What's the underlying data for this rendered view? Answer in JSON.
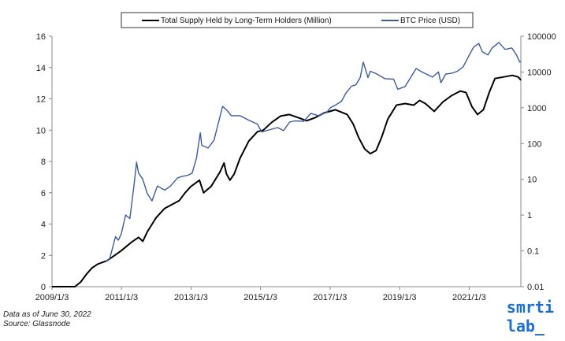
{
  "chart_data": {
    "type": "line",
    "legend": {
      "position": "top-center",
      "entries": [
        {
          "name": "Total Supply Held by Long-Term Holders (Million)",
          "color": "#000000"
        },
        {
          "name": "BTC Price (USD)",
          "color": "#3b5b9e"
        }
      ]
    },
    "x_ticks": [
      "2009/1/3",
      "2011/1/3",
      "2013/1/3",
      "2015/1/3",
      "2017/1/3",
      "2019/1/3",
      "2021/1/3"
    ],
    "xlim": [
      "2009-01-03",
      "2022-06-30"
    ],
    "y_left": {
      "min": 0,
      "max": 16,
      "ticks": [
        0,
        2,
        4,
        6,
        8,
        10,
        12,
        14,
        16
      ]
    },
    "y_right": {
      "scale": "log",
      "min": 0.01,
      "max": 100000,
      "ticks": [
        "0.01",
        "0.1",
        "1",
        "10",
        "100",
        "1000",
        "10000",
        "100000"
      ]
    },
    "series": [
      {
        "name": "Total Supply Held by Long-Term Holders (Million)",
        "axis": "left",
        "color": "#000000",
        "points": [
          [
            "2009-01-03",
            0
          ],
          [
            "2009-09-01",
            0
          ],
          [
            "2009-11-01",
            0.3
          ],
          [
            "2010-01-01",
            0.8
          ],
          [
            "2010-03-01",
            1.2
          ],
          [
            "2010-05-01",
            1.45
          ],
          [
            "2010-08-01",
            1.65
          ],
          [
            "2010-10-01",
            1.9
          ],
          [
            "2011-01-01",
            2.3
          ],
          [
            "2011-03-01",
            2.6
          ],
          [
            "2011-05-01",
            2.9
          ],
          [
            "2011-07-01",
            3.15
          ],
          [
            "2011-08-15",
            2.9
          ],
          [
            "2011-10-01",
            3.5
          ],
          [
            "2012-01-01",
            4.4
          ],
          [
            "2012-04-01",
            5.0
          ],
          [
            "2012-07-01",
            5.3
          ],
          [
            "2012-09-01",
            5.5
          ],
          [
            "2012-11-01",
            6.0
          ],
          [
            "2013-01-01",
            6.4
          ],
          [
            "2013-04-01",
            6.8
          ],
          [
            "2013-05-15",
            6.0
          ],
          [
            "2013-08-01",
            6.4
          ],
          [
            "2013-11-01",
            7.3
          ],
          [
            "2013-12-15",
            7.9
          ],
          [
            "2014-01-10",
            7.2
          ],
          [
            "2014-02-15",
            6.8
          ],
          [
            "2014-04-01",
            7.2
          ],
          [
            "2014-06-01",
            8.2
          ],
          [
            "2014-09-01",
            9.3
          ],
          [
            "2014-12-01",
            9.9
          ],
          [
            "2015-02-01",
            10.0
          ],
          [
            "2015-05-01",
            10.5
          ],
          [
            "2015-08-01",
            10.9
          ],
          [
            "2015-11-01",
            11.0
          ],
          [
            "2016-02-01",
            10.8
          ],
          [
            "2016-05-01",
            10.6
          ],
          [
            "2016-08-01",
            10.8
          ],
          [
            "2016-11-01",
            11.1
          ],
          [
            "2017-03-01",
            11.3
          ],
          [
            "2017-07-01",
            11.0
          ],
          [
            "2017-09-01",
            10.4
          ],
          [
            "2017-11-01",
            9.5
          ],
          [
            "2018-01-01",
            8.8
          ],
          [
            "2018-03-01",
            8.5
          ],
          [
            "2018-05-01",
            8.7
          ],
          [
            "2018-07-01",
            9.6
          ],
          [
            "2018-09-01",
            10.7
          ],
          [
            "2018-12-01",
            11.6
          ],
          [
            "2019-03-01",
            11.7
          ],
          [
            "2019-06-01",
            11.6
          ],
          [
            "2019-08-01",
            11.9
          ],
          [
            "2019-10-01",
            11.7
          ],
          [
            "2020-01-01",
            11.2
          ],
          [
            "2020-04-01",
            11.8
          ],
          [
            "2020-07-01",
            12.2
          ],
          [
            "2020-10-01",
            12.5
          ],
          [
            "2020-12-01",
            12.4
          ],
          [
            "2021-02-01",
            11.5
          ],
          [
            "2021-04-01",
            11.0
          ],
          [
            "2021-06-01",
            11.3
          ],
          [
            "2021-08-01",
            12.4
          ],
          [
            "2021-10-01",
            13.3
          ],
          [
            "2022-01-01",
            13.4
          ],
          [
            "2022-04-01",
            13.5
          ],
          [
            "2022-06-01",
            13.4
          ],
          [
            "2022-06-30",
            13.2
          ]
        ]
      },
      {
        "name": "BTC Price (USD)",
        "axis": "right",
        "color": "#3b5b9e",
        "points": [
          [
            "2010-07-18",
            0.05
          ],
          [
            "2010-09-01",
            0.06
          ],
          [
            "2010-11-01",
            0.25
          ],
          [
            "2010-12-01",
            0.2
          ],
          [
            "2011-01-01",
            0.3
          ],
          [
            "2011-02-15",
            1.0
          ],
          [
            "2011-04-01",
            0.8
          ],
          [
            "2011-05-15",
            7.0
          ],
          [
            "2011-06-10",
            30
          ],
          [
            "2011-07-01",
            15
          ],
          [
            "2011-08-15",
            10
          ],
          [
            "2011-10-01",
            4
          ],
          [
            "2011-11-20",
            2.5
          ],
          [
            "2012-01-15",
            6.5
          ],
          [
            "2012-04-01",
            5
          ],
          [
            "2012-06-01",
            6.5
          ],
          [
            "2012-08-15",
            11
          ],
          [
            "2012-10-01",
            12
          ],
          [
            "2012-12-01",
            13
          ],
          [
            "2013-01-15",
            15
          ],
          [
            "2013-03-01",
            40
          ],
          [
            "2013-04-10",
            200
          ],
          [
            "2013-04-25",
            90
          ],
          [
            "2013-07-01",
            75
          ],
          [
            "2013-09-01",
            125
          ],
          [
            "2013-11-30",
            1100
          ],
          [
            "2014-01-15",
            850
          ],
          [
            "2014-03-01",
            600
          ],
          [
            "2014-06-01",
            600
          ],
          [
            "2014-09-01",
            450
          ],
          [
            "2014-12-01",
            350
          ],
          [
            "2015-01-15",
            210
          ],
          [
            "2015-04-01",
            240
          ],
          [
            "2015-07-01",
            280
          ],
          [
            "2015-09-01",
            230
          ],
          [
            "2015-11-05",
            400
          ],
          [
            "2016-01-01",
            430
          ],
          [
            "2016-04-01",
            420
          ],
          [
            "2016-06-15",
            700
          ],
          [
            "2016-09-01",
            600
          ],
          [
            "2016-12-01",
            760
          ],
          [
            "2017-01-05",
            1000
          ],
          [
            "2017-03-01",
            1200
          ],
          [
            "2017-05-01",
            1500
          ],
          [
            "2017-06-15",
            2500
          ],
          [
            "2017-08-15",
            4000
          ],
          [
            "2017-10-01",
            4400
          ],
          [
            "2017-11-15",
            7000
          ],
          [
            "2017-12-17",
            19000
          ],
          [
            "2018-02-05",
            7000
          ],
          [
            "2018-03-01",
            10500
          ],
          [
            "2018-05-01",
            9000
          ],
          [
            "2018-08-01",
            6500
          ],
          [
            "2018-11-01",
            6300
          ],
          [
            "2018-12-15",
            3300
          ],
          [
            "2019-03-01",
            3900
          ],
          [
            "2019-06-26",
            12500
          ],
          [
            "2019-09-01",
            9800
          ],
          [
            "2019-12-15",
            7200
          ],
          [
            "2020-02-15",
            10000
          ],
          [
            "2020-03-12",
            5000
          ],
          [
            "2020-05-01",
            8800
          ],
          [
            "2020-07-01",
            9200
          ],
          [
            "2020-09-01",
            10500
          ],
          [
            "2020-11-01",
            14000
          ],
          [
            "2021-01-01",
            29000
          ],
          [
            "2021-02-20",
            50000
          ],
          [
            "2021-04-14",
            63000
          ],
          [
            "2021-05-20",
            37000
          ],
          [
            "2021-07-20",
            30000
          ],
          [
            "2021-09-01",
            47000
          ],
          [
            "2021-11-10",
            67000
          ],
          [
            "2022-01-15",
            43000
          ],
          [
            "2022-03-28",
            47000
          ],
          [
            "2022-05-15",
            30000
          ],
          [
            "2022-06-18",
            19000
          ],
          [
            "2022-06-30",
            19800
          ]
        ]
      }
    ],
    "grid": false
  },
  "footnotes": {
    "line1": "Data as of June 30, 2022",
    "line2": "Source: Glassnode"
  },
  "logo": {
    "line1": "smrti",
    "line2": "lab_"
  }
}
